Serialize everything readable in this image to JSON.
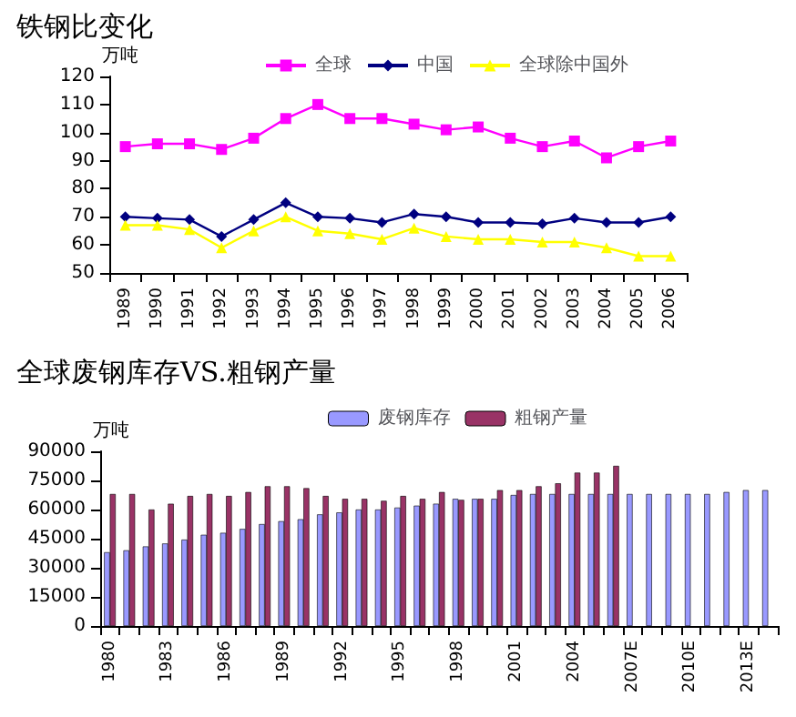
{
  "chart_data": [
    {
      "type": "line",
      "title": "铁钢比变化",
      "ylabel": "万吨",
      "categories": [
        "1989",
        "1990",
        "1991",
        "1992",
        "1993",
        "1994",
        "1995",
        "1996",
        "1997",
        "1998",
        "1999",
        "2000",
        "2001",
        "2002",
        "2003",
        "2004",
        "2005",
        "2006"
      ],
      "series": [
        {
          "name": "全球",
          "color": "#ff00ff",
          "marker": "square",
          "values": [
            95,
            96,
            96,
            94,
            98,
            105,
            110,
            105,
            105,
            103,
            101,
            102,
            98,
            95,
            97,
            91,
            95,
            97
          ]
        },
        {
          "name": "中国",
          "color": "#000080",
          "marker": "diamond",
          "values": [
            70,
            69.5,
            69,
            63,
            69,
            75,
            70,
            69.5,
            68,
            71,
            70,
            68,
            68,
            67.5,
            69.5,
            68,
            68,
            70
          ]
        },
        {
          "name": "全球除中国外",
          "color": "#ffff00",
          "marker": "triangle",
          "values": [
            67,
            67,
            65.5,
            59,
            65,
            70,
            65,
            64,
            62,
            66,
            63,
            62,
            62,
            61,
            61,
            59,
            56,
            56
          ]
        }
      ],
      "ylim": [
        50,
        120
      ],
      "yticks": [
        50,
        60,
        70,
        80,
        90,
        100,
        110,
        120
      ],
      "grid": false,
      "legend": "top"
    },
    {
      "type": "bar",
      "title": "全球废钢库存VS.粗钢产量",
      "ylabel": "万吨",
      "categories": [
        "1980",
        null,
        null,
        "1983",
        null,
        null,
        "1986",
        null,
        null,
        "1989",
        null,
        null,
        "1992",
        null,
        null,
        "1995",
        null,
        null,
        "1998",
        null,
        null,
        "2001",
        null,
        null,
        "2004",
        null,
        null,
        "2007E",
        null,
        null,
        "2010E",
        null,
        null,
        "2013E",
        null
      ],
      "series": [
        {
          "name": "废钢库存",
          "color": "#9999ff",
          "values": [
            38000,
            39000,
            41000,
            42500,
            44500,
            47000,
            48000,
            50000,
            52500,
            54000,
            55000,
            57500,
            58500,
            60000,
            60000,
            61000,
            62000,
            63000,
            65500,
            65500,
            65500,
            67500,
            68000,
            68000,
            68000,
            68000,
            68000,
            68000,
            68000,
            68000,
            68000,
            68000,
            69000,
            70000,
            70000
          ]
        },
        {
          "name": "粗钢产量",
          "color": "#993366",
          "values": [
            68000,
            68000,
            60000,
            63000,
            67000,
            68000,
            67000,
            69000,
            72000,
            72000,
            71000,
            67000,
            65500,
            65500,
            64500,
            67000,
            65500,
            69000,
            65000,
            65500,
            70000,
            70000,
            72000,
            73500,
            79000,
            79000,
            82500,
            null,
            null,
            null,
            null,
            null,
            null,
            null,
            null
          ]
        }
      ],
      "ylim": [
        0,
        90000
      ],
      "yticks": [
        0,
        15000,
        30000,
        45000,
        60000,
        75000,
        90000
      ],
      "grid": false,
      "legend": "top"
    }
  ]
}
